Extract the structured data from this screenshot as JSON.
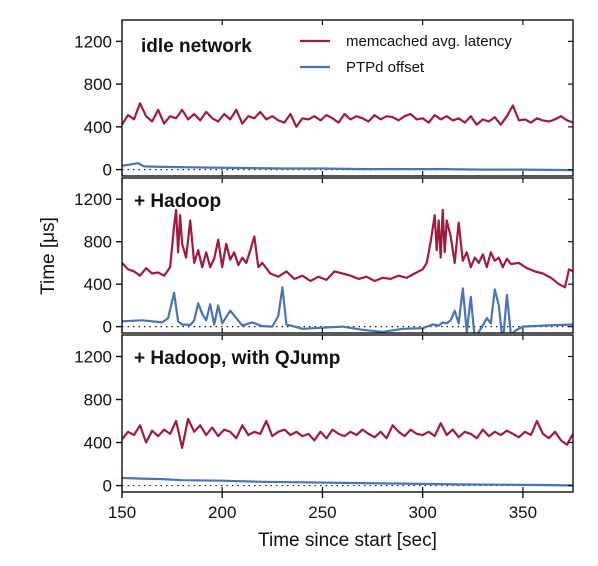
{
  "chart_data": {
    "type": "line",
    "layout": "3 stacked panels, shared x-axis",
    "xlabel": "Time since start [sec]",
    "ylabel": "Time [μs]",
    "xlim": [
      150,
      375
    ],
    "x_ticks": [
      "150",
      "200",
      "250",
      "300",
      "350"
    ],
    "ylim": [
      -60,
      1400
    ],
    "y_ticks": [
      "0",
      "400",
      "800",
      "1200"
    ],
    "zero_reference_line": "dotted",
    "grid": false,
    "legend": {
      "placement": "top-right of first panel",
      "entries": [
        "memcached avg. latency",
        "PTPd offset"
      ]
    },
    "colors": {
      "memcached": "#a01b3c",
      "ptpd": "#4a74b8"
    },
    "panels": [
      {
        "title": "idle network",
        "series": [
          {
            "name": "memcached avg. latency",
            "x": [
              150,
              153,
              156,
              159,
              162,
              165,
              168,
              171,
              174,
              177,
              180,
              183,
              186,
              189,
              192,
              195,
              198,
              201,
              204,
              207,
              210,
              213,
              216,
              219,
              222,
              225,
              228,
              231,
              234,
              237,
              240,
              243,
              246,
              249,
              252,
              255,
              258,
              261,
              264,
              267,
              270,
              273,
              276,
              279,
              282,
              285,
              288,
              291,
              294,
              297,
              300,
              303,
              306,
              309,
              312,
              315,
              318,
              321,
              324,
              327,
              330,
              333,
              336,
              339,
              342,
              345,
              348,
              351,
              354,
              357,
              360,
              363,
              366,
              369,
              372,
              375
            ],
            "values": [
              420,
              510,
              470,
              620,
              500,
              450,
              560,
              430,
              500,
              480,
              560,
              470,
              520,
              460,
              540,
              480,
              450,
              520,
              470,
              560,
              430,
              500,
              480,
              540,
              470,
              500,
              460,
              440,
              520,
              400,
              480,
              470,
              500,
              460,
              510,
              480,
              440,
              520,
              470,
              500,
              480,
              450,
              510,
              470,
              500,
              490,
              460,
              500,
              520,
              470,
              480,
              440,
              510,
              470,
              500,
              460,
              480,
              440,
              500,
              420,
              470,
              450,
              490,
              420,
              500,
              600,
              460,
              470,
              440,
              480,
              460,
              450,
              470,
              500,
              460,
              440
            ]
          },
          {
            "name": "PTPd offset",
            "x": [
              150,
              155,
              158,
              161,
              170,
              190,
              210,
              230,
              250,
              270,
              290,
              310,
              330,
              350,
              375
            ],
            "values": [
              35,
              50,
              60,
              30,
              25,
              20,
              15,
              10,
              10,
              5,
              5,
              5,
              0,
              0,
              -5
            ]
          }
        ]
      },
      {
        "title": "+ Hadoop",
        "series": [
          {
            "name": "memcached avg. latency",
            "x": [
              150,
              153,
              156,
              159,
              162,
              165,
              168,
              171,
              174,
              176,
              177,
              178,
              179,
              180,
              182,
              184,
              186,
              188,
              190,
              192,
              194,
              196,
              198,
              200,
              202,
              204,
              206,
              208,
              210,
              212,
              214,
              216,
              218,
              220,
              224,
              228,
              232,
              236,
              240,
              244,
              248,
              252,
              256,
              260,
              264,
              268,
              272,
              276,
              280,
              284,
              288,
              292,
              296,
              300,
              302,
              304,
              306,
              307,
              308,
              309,
              310,
              311,
              312,
              314,
              316,
              318,
              320,
              322,
              324,
              326,
              328,
              330,
              332,
              334,
              336,
              338,
              340,
              342,
              344,
              348,
              352,
              356,
              360,
              364,
              368,
              371,
              373,
              375
            ],
            "values": [
              600,
              540,
              520,
              480,
              550,
              500,
              510,
              480,
              560,
              950,
              1100,
              700,
              1050,
              780,
              650,
              1000,
              600,
              720,
              560,
              700,
              560,
              640,
              820,
              560,
              780,
              630,
              700,
              580,
              650,
              600,
              720,
              850,
              560,
              600,
              500,
              470,
              520,
              450,
              480,
              430,
              470,
              440,
              520,
              500,
              480,
              450,
              470,
              430,
              460,
              450,
              480,
              460,
              500,
              540,
              600,
              800,
              1050,
              720,
              1000,
              650,
              1100,
              700,
              1000,
              850,
              600,
              980,
              620,
              700,
              560,
              650,
              600,
              680,
              560,
              700,
              620,
              650,
              560,
              640,
              590,
              600,
              550,
              520,
              500,
              460,
              400,
              370,
              540,
              520
            ]
          },
          {
            "name": "PTPd offset",
            "x": [
              150,
              160,
              170,
              173,
              176,
              178,
              180,
              184,
              186,
              188,
              190,
              192,
              194,
              196,
              198,
              200,
              204,
              210,
              215,
              220,
              225,
              228,
              230,
              232,
              236,
              240,
              250,
              260,
              270,
              280,
              290,
              300,
              305,
              308,
              310,
              312,
              314,
              316,
              318,
              320,
              322,
              324,
              326,
              328,
              330,
              332,
              334,
              336,
              338,
              340,
              342,
              344,
              346,
              350,
              360,
              375
            ],
            "values": [
              50,
              60,
              40,
              80,
              320,
              50,
              20,
              15,
              60,
              220,
              120,
              60,
              210,
              20,
              200,
              30,
              150,
              10,
              40,
              5,
              0,
              100,
              370,
              20,
              0,
              -20,
              -10,
              0,
              -30,
              -50,
              -20,
              -15,
              20,
              10,
              40,
              30,
              60,
              150,
              30,
              360,
              -50,
              280,
              -120,
              -50,
              10,
              80,
              30,
              350,
              200,
              -160,
              300,
              -80,
              -40,
              0,
              10,
              20
            ]
          }
        ]
      },
      {
        "title": "+ Hadoop, with QJump",
        "series": [
          {
            "name": "memcached avg. latency",
            "x": [
              150,
              153,
              156,
              159,
              162,
              165,
              168,
              171,
              174,
              177,
              180,
              183,
              186,
              189,
              192,
              195,
              198,
              201,
              204,
              207,
              210,
              213,
              216,
              219,
              222,
              225,
              228,
              231,
              234,
              237,
              240,
              243,
              246,
              249,
              252,
              255,
              258,
              261,
              264,
              267,
              270,
              273,
              276,
              279,
              282,
              285,
              288,
              291,
              294,
              297,
              300,
              303,
              306,
              309,
              312,
              315,
              318,
              321,
              324,
              327,
              330,
              333,
              336,
              339,
              342,
              345,
              348,
              351,
              354,
              357,
              360,
              363,
              366,
              369,
              372,
              375
            ],
            "values": [
              430,
              500,
              470,
              560,
              400,
              510,
              460,
              520,
              480,
              600,
              350,
              620,
              500,
              560,
              470,
              540,
              460,
              520,
              500,
              440,
              560,
              470,
              500,
              480,
              600,
              460,
              500,
              520,
              470,
              500,
              460,
              480,
              420,
              500,
              440,
              520,
              480,
              460,
              500,
              470,
              520,
              480,
              450,
              500,
              440,
              560,
              500,
              460,
              520,
              480,
              470,
              500,
              460,
              580,
              470,
              520,
              450,
              500,
              480,
              440,
              520,
              460,
              500,
              470,
              510,
              480,
              450,
              500,
              470,
              600,
              480,
              440,
              500,
              420,
              380,
              480
            ]
          },
          {
            "name": "PTPd offset",
            "x": [
              150,
              160,
              170,
              180,
              200,
              220,
              240,
              260,
              280,
              300,
              320,
              340,
              360,
              375
            ],
            "values": [
              70,
              65,
              60,
              50,
              45,
              35,
              30,
              25,
              20,
              15,
              10,
              8,
              5,
              0
            ]
          }
        ]
      }
    ]
  }
}
